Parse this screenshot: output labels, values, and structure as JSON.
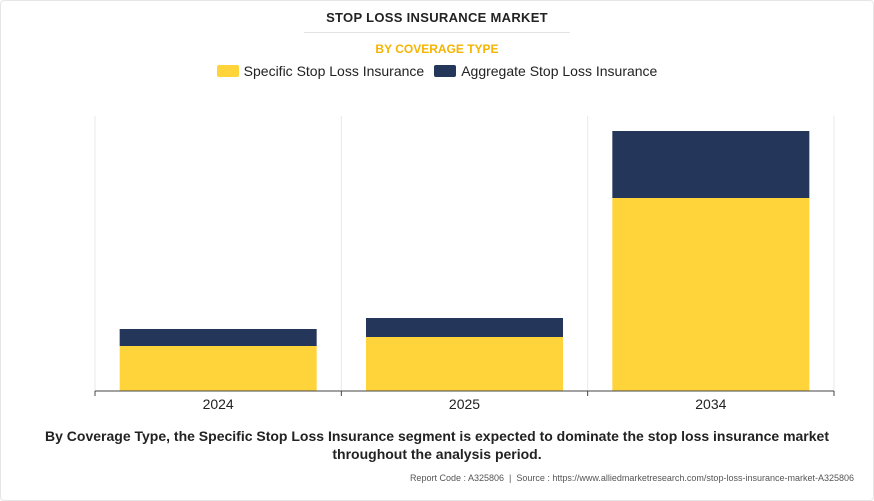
{
  "header": {
    "title": "STOP LOSS INSURANCE MARKET",
    "subtitle": "BY COVERAGE TYPE"
  },
  "colors": {
    "specific": "#FFD43B",
    "aggregate": "#243659",
    "subtitle": "#F4B400"
  },
  "chart_data": {
    "type": "bar",
    "stacked": true,
    "categories": [
      "2024",
      "2025",
      "2034"
    ],
    "series": [
      {
        "name": "Specific Stop Loss Insurance",
        "color": "#FFD43B",
        "values": [
          45,
          54,
          193
        ]
      },
      {
        "name": "Aggregate Stop Loss Insurance",
        "color": "#243659",
        "values": [
          17,
          19,
          67
        ]
      }
    ],
    "ylim": [
      0,
      275
    ],
    "grid": {
      "vertical": true,
      "horizontal": false
    },
    "legend": "top-center",
    "title": "STOP LOSS INSURANCE MARKET",
    "subtitle": "BY COVERAGE TYPE",
    "xlabel": "",
    "ylabel": ""
  },
  "caption": "By Coverage Type, the Specific Stop Loss Insurance segment is expected to dominate the stop loss insurance market throughout the analysis period.",
  "source": {
    "report_code": "Report Code : A325806",
    "separator": "|",
    "url": "Source : https://www.alliedmarketresearch.com/stop-loss-insurance-market-A325806"
  }
}
